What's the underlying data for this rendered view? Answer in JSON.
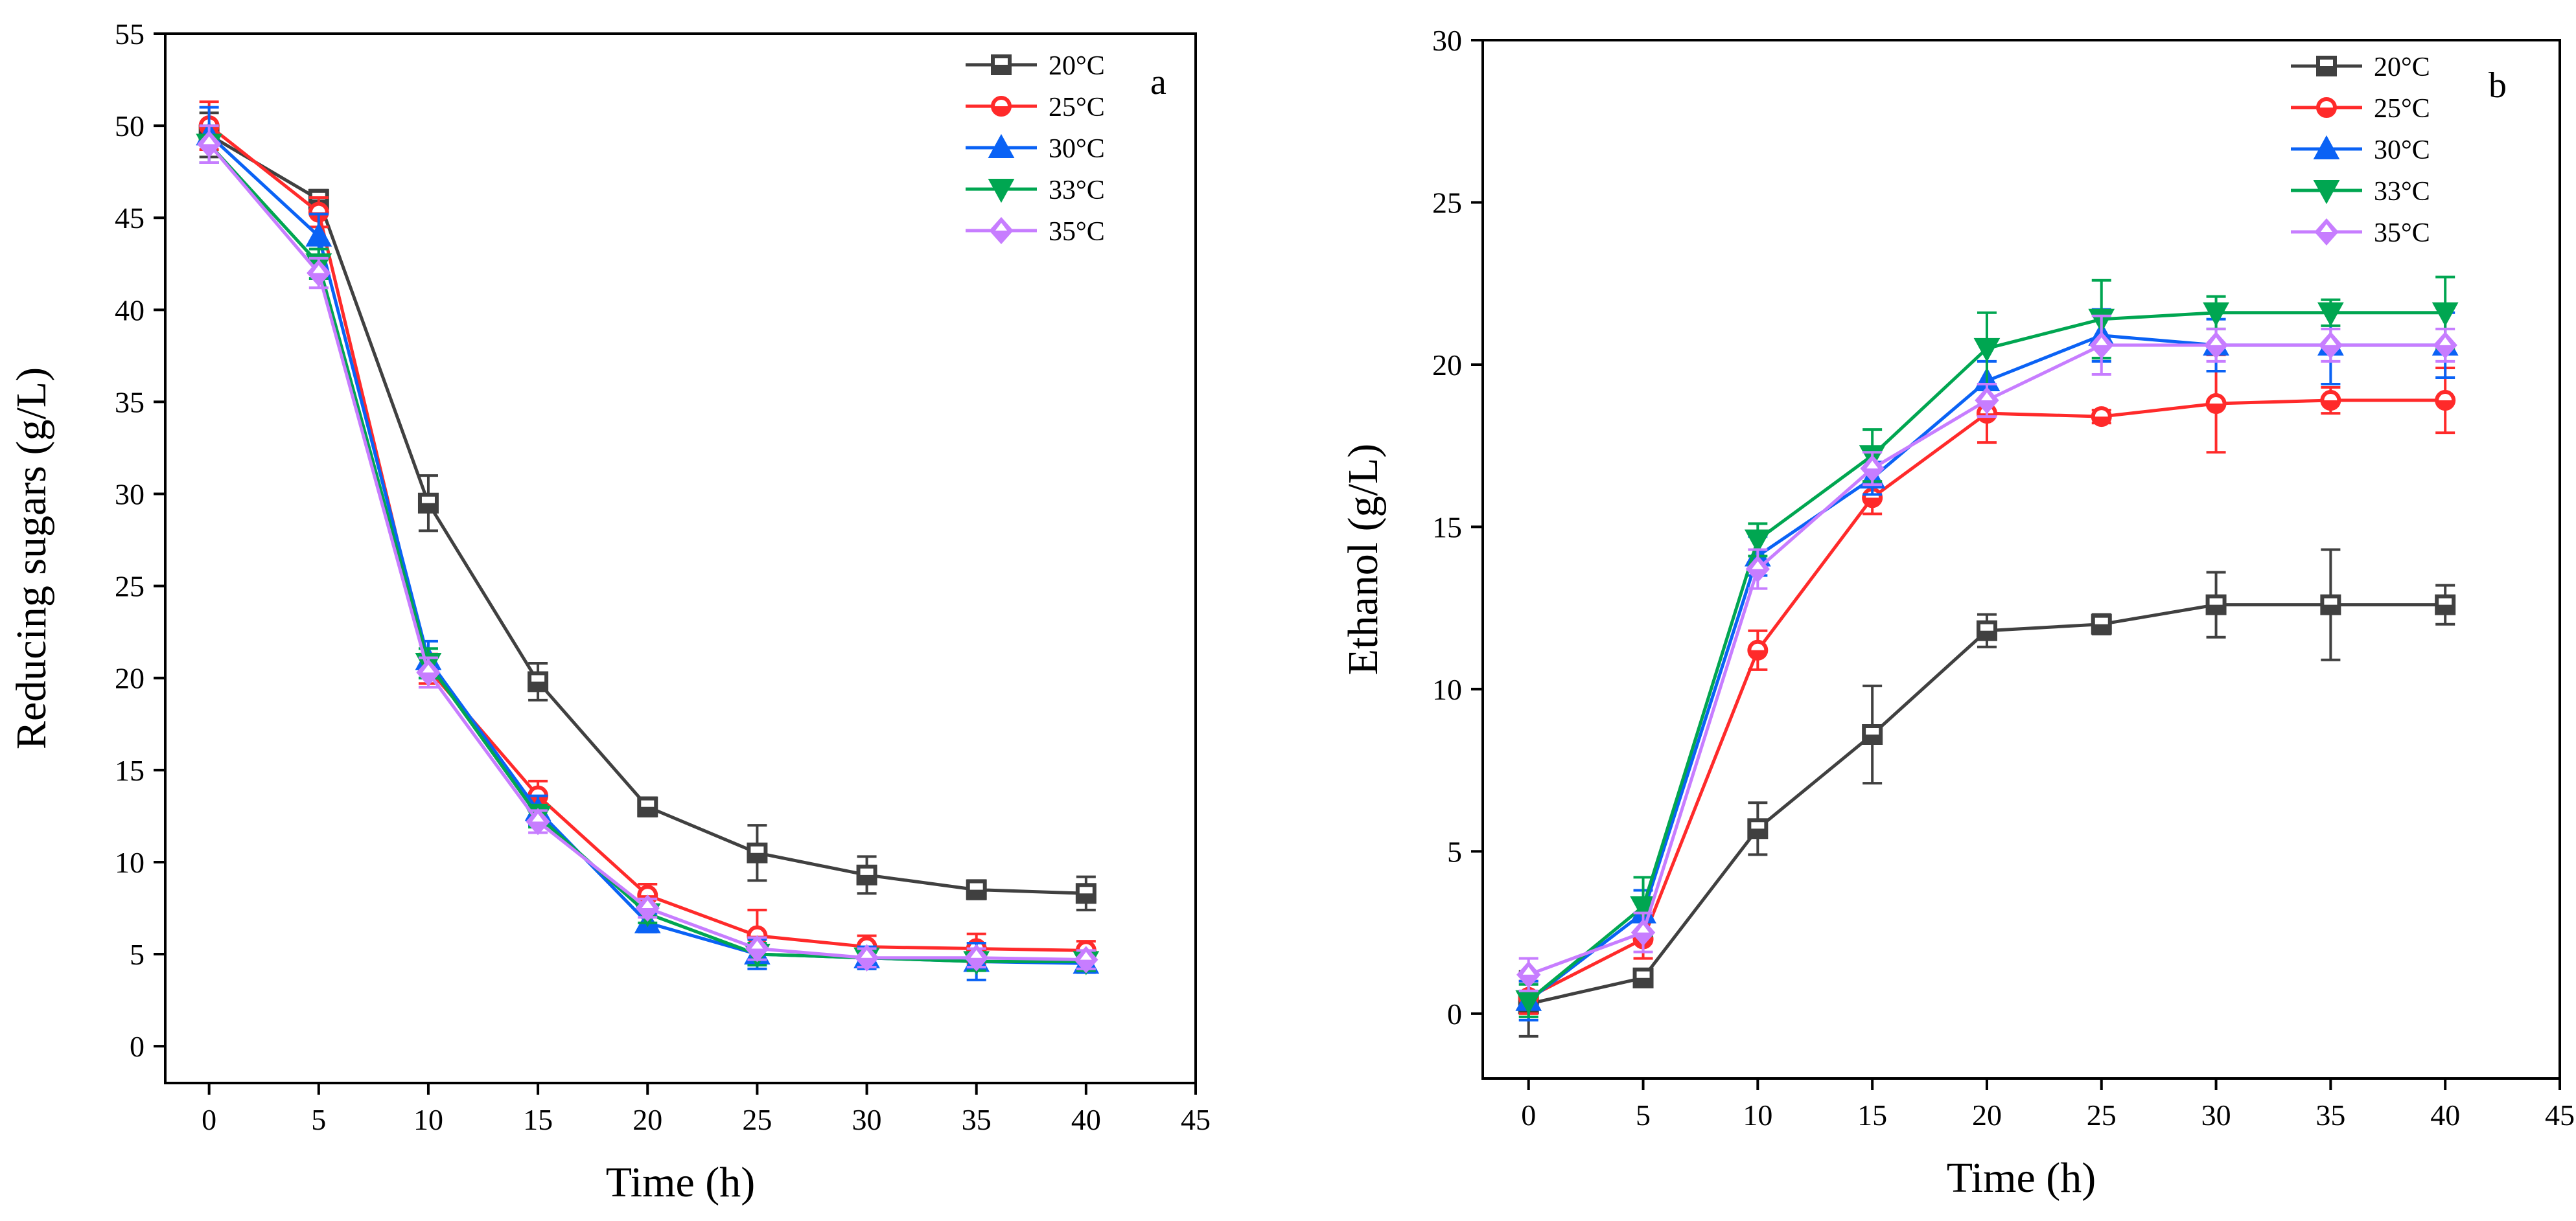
{
  "chart_data": [
    {
      "type": "line",
      "panel_label": "a",
      "xlabel": "Time (h)",
      "ylabel": "Reducing sugars (g/L)",
      "xlim": [
        -2,
        45
      ],
      "ylim": [
        -2,
        55
      ],
      "xticks": [
        0,
        5,
        10,
        15,
        20,
        25,
        30,
        35,
        40,
        45
      ],
      "yticks": [
        0,
        5,
        10,
        15,
        20,
        25,
        30,
        35,
        40,
        45,
        50,
        55
      ],
      "grid": false,
      "legend_position": "top-right",
      "x": [
        0,
        5,
        10,
        15,
        20,
        25,
        30,
        35,
        40
      ],
      "series": [
        {
          "name": "20°C",
          "color": "#404040",
          "marker": "square",
          "values": [
            49.5,
            46.0,
            29.5,
            19.8,
            13.0,
            10.5,
            9.3,
            8.5,
            8.3
          ],
          "errors": [
            1.2,
            0.5,
            1.5,
            1.0,
            0.5,
            1.5,
            1.0,
            0.5,
            0.9
          ]
        },
        {
          "name": "25°C",
          "color": "#ff2a2a",
          "marker": "circle",
          "values": [
            50.0,
            45.3,
            20.5,
            13.6,
            8.2,
            6.0,
            5.4,
            5.3,
            5.2
          ],
          "errors": [
            1.3,
            0.8,
            0.8,
            0.8,
            0.6,
            1.4,
            0.6,
            0.8,
            0.5
          ]
        },
        {
          "name": "30°C",
          "color": "#0a62f5",
          "marker": "triangle-up",
          "values": [
            49.5,
            44.0,
            21.0,
            12.8,
            6.7,
            5.0,
            4.8,
            4.6,
            4.5
          ],
          "errors": [
            1.5,
            1.2,
            1.0,
            0.8,
            0.5,
            0.8,
            0.6,
            1.0,
            0.5
          ]
        },
        {
          "name": "33°C",
          "color": "#00a651",
          "marker": "triangle-down",
          "values": [
            49.0,
            42.5,
            20.8,
            12.5,
            7.2,
            5.0,
            4.8,
            4.6,
            4.6
          ],
          "errors": [
            1.0,
            0.8,
            0.8,
            0.6,
            0.5,
            0.6,
            0.5,
            0.5,
            0.5
          ]
        },
        {
          "name": "35°C",
          "color": "#c77dff",
          "marker": "diamond",
          "values": [
            49.0,
            42.0,
            20.3,
            12.2,
            7.5,
            5.3,
            4.8,
            4.8,
            4.7
          ],
          "errors": [
            1.0,
            0.8,
            0.8,
            0.6,
            0.5,
            0.6,
            0.5,
            0.5,
            0.5
          ]
        }
      ]
    },
    {
      "type": "line",
      "panel_label": "b",
      "xlabel": "Time (h)",
      "ylabel": "Ethanol (g/L)",
      "xlim": [
        -2,
        45
      ],
      "ylim": [
        -2,
        30
      ],
      "xticks": [
        0,
        5,
        10,
        15,
        20,
        25,
        30,
        35,
        40,
        45
      ],
      "yticks": [
        0,
        5,
        10,
        15,
        20,
        25,
        30
      ],
      "grid": false,
      "legend_position": "top-right",
      "x": [
        0,
        5,
        10,
        15,
        20,
        25,
        30,
        35,
        40
      ],
      "series": [
        {
          "name": "20°C",
          "color": "#404040",
          "marker": "square",
          "values": [
            0.3,
            1.1,
            5.7,
            8.6,
            11.8,
            12.0,
            12.6,
            12.6,
            12.6
          ],
          "errors": [
            1.0,
            0.2,
            0.8,
            1.5,
            0.5,
            0.3,
            1.0,
            1.7,
            0.6
          ]
        },
        {
          "name": "25°C",
          "color": "#ff2a2a",
          "marker": "circle",
          "values": [
            0.5,
            2.3,
            11.2,
            15.9,
            18.5,
            18.4,
            18.8,
            18.9,
            18.9
          ],
          "errors": [
            0.5,
            0.6,
            0.6,
            0.5,
            0.9,
            0.2,
            1.5,
            0.4,
            1.0
          ]
        },
        {
          "name": "30°C",
          "color": "#0a62f5",
          "marker": "triangle-up",
          "values": [
            0.4,
            3.1,
            14.1,
            16.5,
            19.5,
            20.9,
            20.6,
            20.6,
            20.6
          ],
          "errors": [
            0.6,
            0.7,
            0.6,
            0.5,
            0.6,
            0.8,
            0.8,
            1.2,
            1.0
          ]
        },
        {
          "name": "33°C",
          "color": "#00a651",
          "marker": "triangle-down",
          "values": [
            0.4,
            3.3,
            14.6,
            17.2,
            20.5,
            21.4,
            21.6,
            21.6,
            21.6
          ],
          "errors": [
            0.5,
            0.9,
            0.5,
            0.8,
            1.1,
            1.2,
            0.5,
            0.4,
            1.1
          ]
        },
        {
          "name": "35°C",
          "color": "#c77dff",
          "marker": "diamond",
          "values": [
            1.2,
            2.5,
            13.7,
            16.8,
            18.9,
            20.6,
            20.6,
            20.6,
            20.6
          ],
          "errors": [
            0.5,
            0.6,
            0.6,
            0.5,
            0.5,
            0.9,
            0.5,
            0.5,
            0.5
          ]
        }
      ]
    }
  ]
}
